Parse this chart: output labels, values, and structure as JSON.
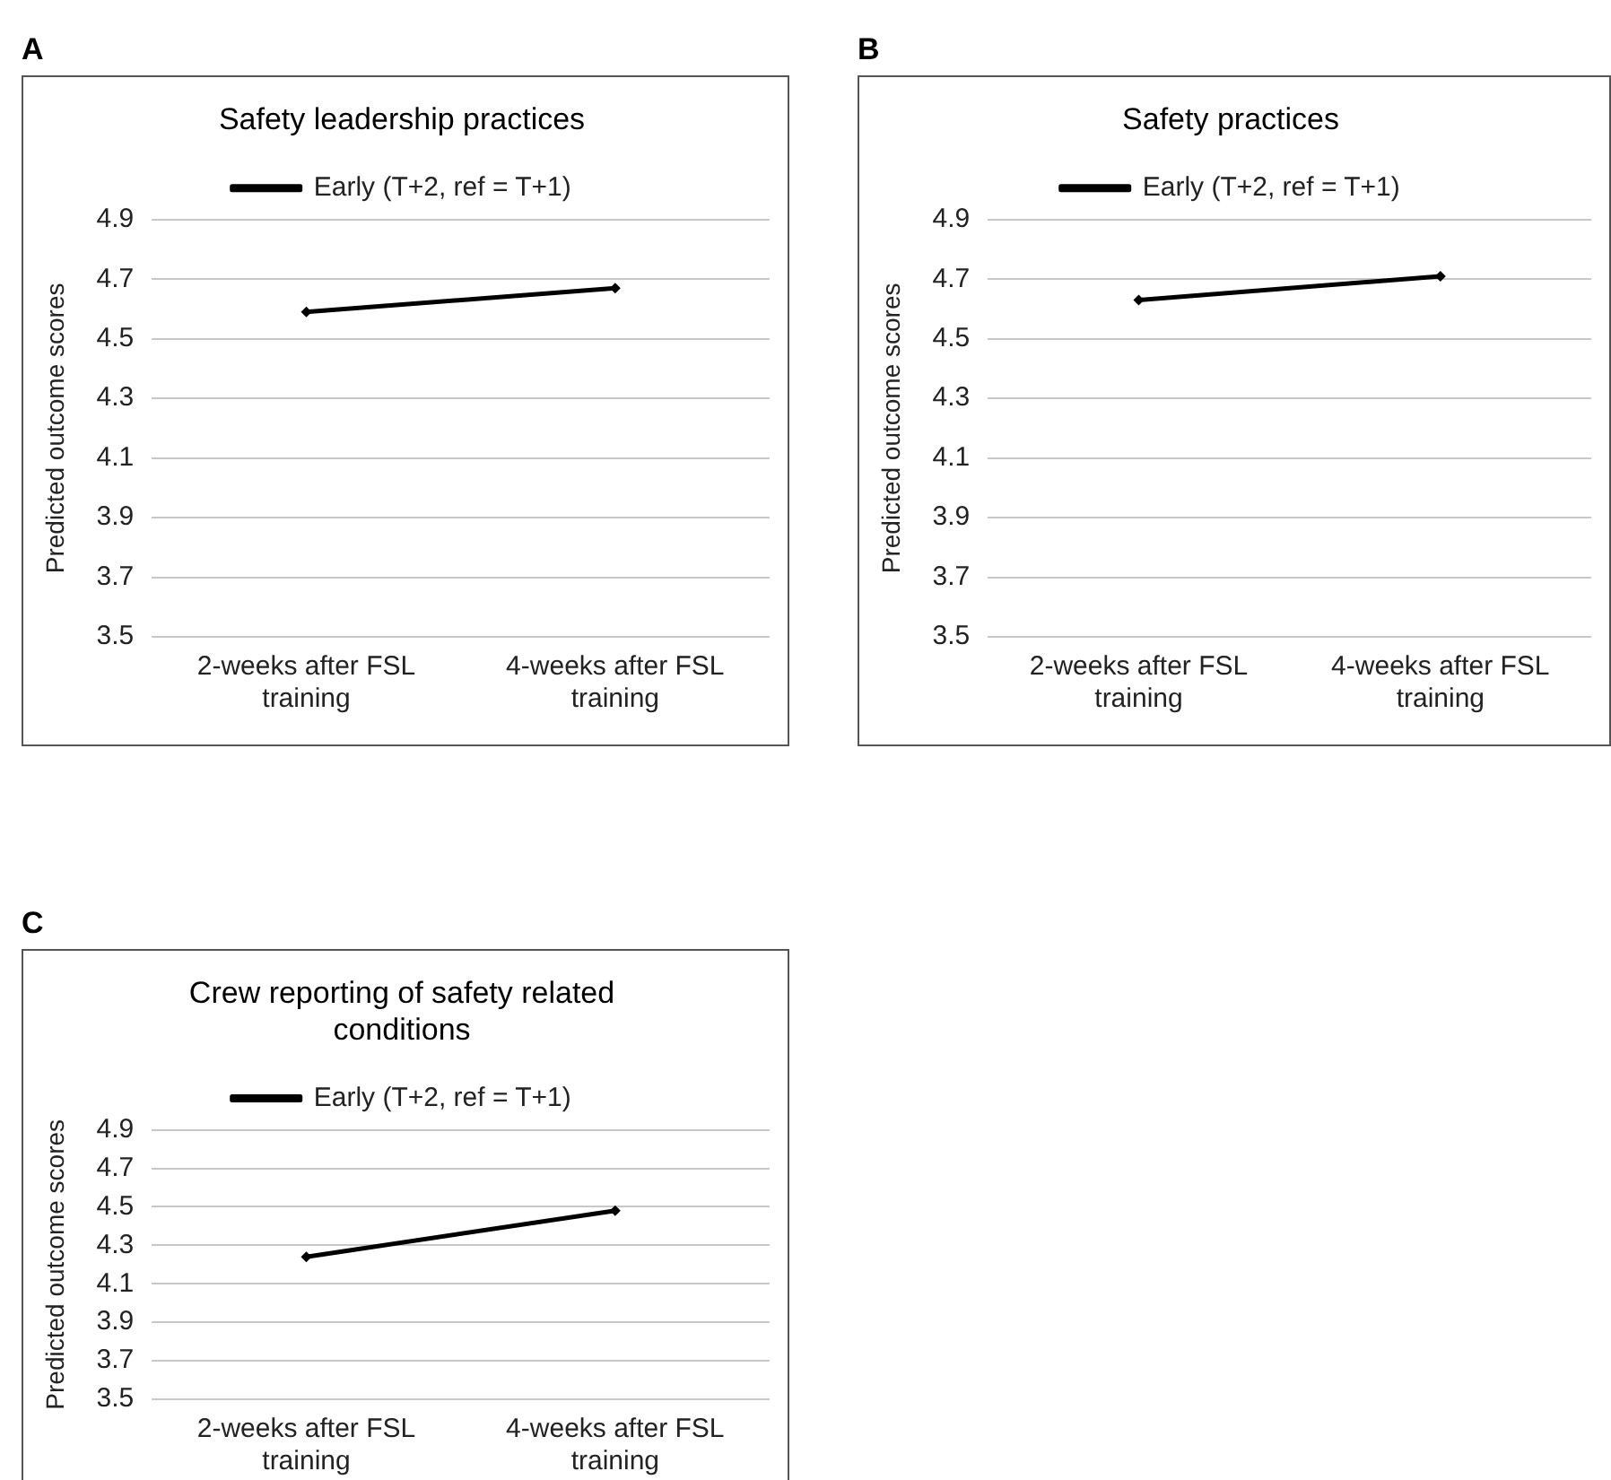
{
  "chart_data": [
    {
      "type": "line",
      "title": "Safety leadership practices",
      "ylabel": "Predicted outcome scores",
      "annotations": [
        "A"
      ],
      "categories": [
        "2-weeks after FSL training",
        "4-weeks after FSL training"
      ],
      "series": [
        {
          "name": "Early (T+2, ref = T+1)",
          "color": "#000000",
          "values": [
            4.59,
            4.67
          ]
        }
      ],
      "ylim": [
        3.5,
        4.9
      ],
      "yticks": [
        3.5,
        3.7,
        3.9,
        4.1,
        4.3,
        4.5,
        4.7,
        4.9
      ],
      "grid": "y",
      "legend": "top",
      "marker": "diamond",
      "line_style": "solid"
    },
    {
      "type": "line",
      "title": "Safety practices",
      "ylabel": "Predicted outcome scores",
      "annotations": [
        "B"
      ],
      "categories": [
        "2-weeks after FSL training",
        "4-weeks after FSL training"
      ],
      "series": [
        {
          "name": "Early (T+2, ref = T+1)",
          "color": "#000000",
          "values": [
            4.63,
            4.71
          ]
        }
      ],
      "ylim": [
        3.5,
        4.9
      ],
      "yticks": [
        3.5,
        3.7,
        3.9,
        4.1,
        4.3,
        4.5,
        4.7,
        4.9
      ],
      "grid": "y",
      "legend": "top",
      "marker": "diamond",
      "line_style": "solid"
    },
    {
      "type": "line",
      "title": "Crew reporting of safety related conditions",
      "ylabel": "Predicted outcome scores",
      "annotations": [
        "C"
      ],
      "categories": [
        "2-weeks after FSL training",
        "4-weeks after FSL training"
      ],
      "series": [
        {
          "name": "Early (T+2, ref = T+1)",
          "color": "#000000",
          "values": [
            4.24,
            4.48
          ]
        }
      ],
      "ylim": [
        3.5,
        4.9
      ],
      "yticks": [
        3.5,
        3.7,
        3.9,
        4.1,
        4.3,
        4.5,
        4.7,
        4.9
      ],
      "grid": "y",
      "legend": "top",
      "marker": "diamond",
      "line_style": "solid"
    }
  ]
}
